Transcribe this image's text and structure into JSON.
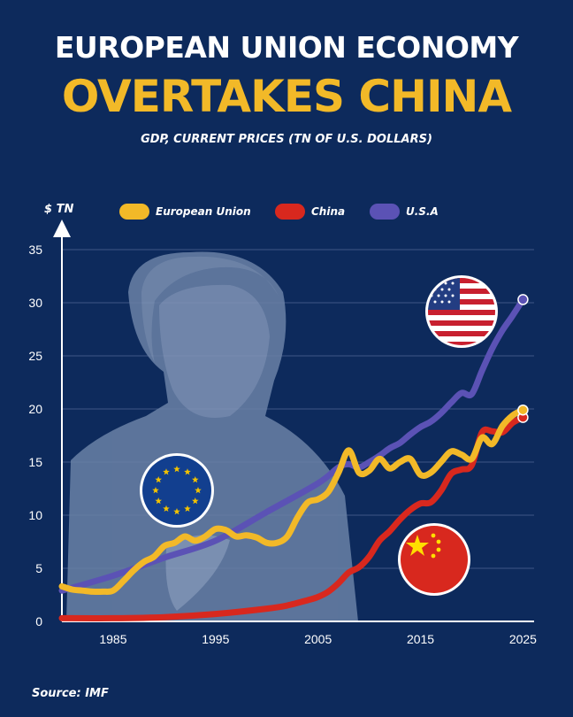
{
  "header": {
    "title_line1": "EUROPEAN UNION ECONOMY",
    "title_line2": "OVERTAKES CHINA",
    "subtitle": "GDP, CURRENT PRICES (TN OF U.S. DOLLARS)"
  },
  "footer": {
    "source": "Source: IMF"
  },
  "colors": {
    "background": "#0d2a5c",
    "eu": "#f2b928",
    "china": "#d8281e",
    "usa": "#5b52b5",
    "grid": "#3e5786"
  },
  "icons": [
    "eu-flag-icon",
    "usa-flag-icon",
    "china-flag-icon"
  ],
  "chart_data": {
    "type": "line",
    "title": "GDP, CURRENT PRICES (TN OF U.S. DOLLARS)",
    "ylabel": "$ TN",
    "xlabel": "",
    "xlim": [
      1980,
      2026
    ],
    "ylim": [
      0,
      35
    ],
    "y_ticks": [
      0,
      5,
      10,
      15,
      20,
      25,
      30,
      35
    ],
    "x_ticks": [
      1985,
      1995,
      2005,
      2015,
      2025
    ],
    "grid": true,
    "legend_position": "top",
    "series": [
      {
        "name": "European Union",
        "color": "#f2b928",
        "x": [
          1980,
          1981,
          1982,
          1983,
          1984,
          1985,
          1986,
          1987,
          1988,
          1989,
          1990,
          1991,
          1992,
          1993,
          1994,
          1995,
          1996,
          1997,
          1998,
          1999,
          2000,
          2001,
          2002,
          2003,
          2004,
          2005,
          2006,
          2007,
          2008,
          2009,
          2010,
          2011,
          2012,
          2013,
          2014,
          2015,
          2016,
          2017,
          2018,
          2019,
          2020,
          2021,
          2022,
          2023,
          2024,
          2025
        ],
        "values": [
          3.3,
          3.0,
          2.9,
          2.8,
          2.8,
          2.9,
          3.8,
          4.8,
          5.6,
          6.1,
          7.1,
          7.4,
          8.0,
          7.6,
          8.0,
          8.7,
          8.6,
          8.0,
          8.1,
          7.9,
          7.4,
          7.4,
          8.0,
          9.8,
          11.2,
          11.5,
          12.2,
          14.0,
          16.1,
          14.0,
          14.2,
          15.3,
          14.4,
          15.0,
          15.3,
          13.8,
          14.0,
          15.0,
          16.0,
          15.7,
          15.3,
          17.3,
          16.7,
          18.4,
          19.4,
          19.9
        ]
      },
      {
        "name": "China",
        "color": "#d8281e",
        "x": [
          1980,
          1985,
          1990,
          1995,
          2000,
          2002,
          2004,
          2005,
          2006,
          2007,
          2008,
          2009,
          2010,
          2011,
          2012,
          2013,
          2014,
          2015,
          2016,
          2017,
          2018,
          2019,
          2020,
          2021,
          2022,
          2023,
          2024,
          2025
        ],
        "values": [
          0.3,
          0.3,
          0.4,
          0.7,
          1.2,
          1.5,
          2.0,
          2.3,
          2.8,
          3.6,
          4.6,
          5.1,
          6.1,
          7.6,
          8.5,
          9.6,
          10.5,
          11.1,
          11.2,
          12.3,
          13.9,
          14.3,
          14.7,
          17.8,
          17.9,
          17.8,
          18.7,
          19.2
        ]
      },
      {
        "name": "U.S.A",
        "color": "#5b52b5",
        "x": [
          1980,
          1985,
          1990,
          1995,
          2000,
          2005,
          2007,
          2008,
          2009,
          2010,
          2011,
          2012,
          2013,
          2014,
          2015,
          2016,
          2017,
          2018,
          2019,
          2020,
          2021,
          2022,
          2023,
          2024,
          2025
        ],
        "values": [
          2.9,
          4.3,
          6.0,
          7.6,
          10.3,
          13.0,
          14.5,
          14.8,
          14.5,
          15.0,
          15.6,
          16.3,
          16.8,
          17.6,
          18.3,
          18.8,
          19.6,
          20.6,
          21.5,
          21.4,
          23.6,
          25.7,
          27.4,
          28.8,
          30.3
        ]
      }
    ]
  }
}
